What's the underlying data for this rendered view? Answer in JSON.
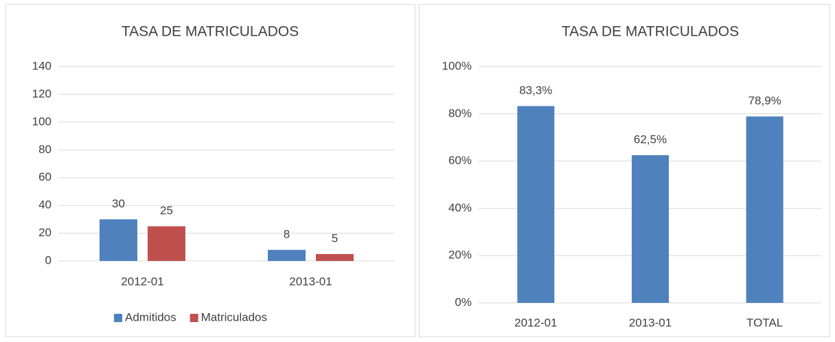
{
  "chart_data": [
    {
      "type": "bar",
      "title": "TASA DE MATRICULADOS",
      "categories": [
        "2012-01",
        "2013-01"
      ],
      "series": [
        {
          "name": "Admitidos",
          "color": "#4f81bd",
          "values": [
            30,
            8
          ]
        },
        {
          "name": "Matriculados",
          "color": "#c0504d",
          "values": [
            25,
            5
          ]
        }
      ],
      "ylim": [
        0,
        140
      ],
      "yticks": [
        0,
        20,
        40,
        60,
        80,
        100,
        120,
        140
      ],
      "grid": true,
      "legend": "bottom"
    },
    {
      "type": "bar",
      "title": "TASA DE MATRICULADOS",
      "categories": [
        "2012-01",
        "2013-01",
        "TOTAL"
      ],
      "values": [
        83.3,
        62.5,
        78.9
      ],
      "value_labels": [
        "83,3%",
        "62,5%",
        "78,9%"
      ],
      "color": "#4f81bd",
      "ylim": [
        0,
        100
      ],
      "yticks": [
        {
          "value": 0,
          "label": "0%"
        },
        {
          "value": 20,
          "label": "20%"
        },
        {
          "value": 40,
          "label": "40%"
        },
        {
          "value": 60,
          "label": "60%"
        },
        {
          "value": 80,
          "label": "80%"
        },
        {
          "value": 100,
          "label": "100%"
        }
      ],
      "grid": true
    }
  ]
}
